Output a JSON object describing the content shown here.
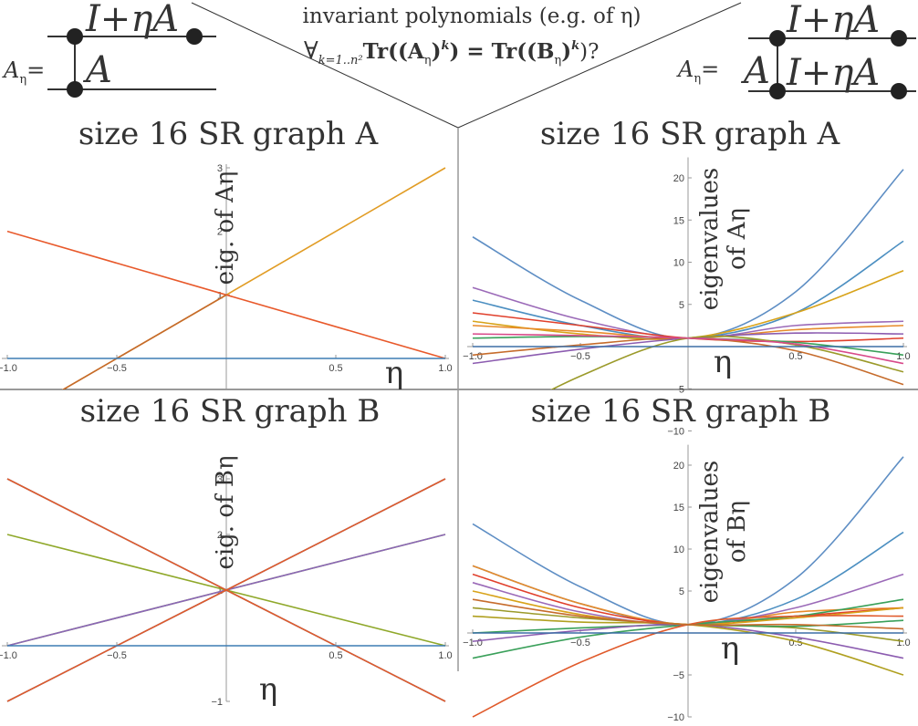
{
  "header": {
    "line1": "invariant polynomials (e.g. of η)",
    "line2": {
      "forall": "∀",
      "sub": "k=1..n²",
      "formula": "Tr((A",
      "eta1": "η",
      "pow1": "k",
      "eq": ") = Tr((B",
      "eta2": "η",
      "pow2": "k",
      "close": ")?"
    }
  },
  "diagram_left": {
    "lhs": "A",
    "lhs_sub": "η",
    "eq": "=",
    "top": "I+ηA",
    "bottom": "A"
  },
  "diagram_right": {
    "lhs": "A",
    "lhs_sub": "η",
    "eq": "=",
    "top": "I+ηA",
    "left": "A",
    "bottom": "I+ηA"
  },
  "chart_data": [
    {
      "type": "line",
      "title": "size 16 SR graph A",
      "ylabel": "eig. of Aη",
      "xlabel": "η",
      "xlim": [
        -1.0,
        1.0
      ],
      "ylim": [
        -1.0,
        3.0
      ],
      "xticks": [
        "−1.0",
        "−0.5",
        "0.5",
        "1.0"
      ],
      "xtick_values": [
        -1.0,
        -0.5,
        0.5,
        1.0
      ],
      "yticks": [
        "1",
        "2",
        "3"
      ],
      "ytick_values": [
        1,
        2,
        3
      ],
      "series": [
        {
          "color": "#e19c24",
          "x": [
            -1,
            1
          ],
          "y": [
            -1,
            3
          ]
        },
        {
          "color": "#e8592b",
          "x": [
            -1,
            1
          ],
          "y": [
            2,
            0
          ]
        },
        {
          "color": "#c56a2c",
          "x": [
            -1,
            0
          ],
          "y": [
            -1,
            1
          ]
        },
        {
          "color": "#3d7db4",
          "x": [
            -1,
            1
          ],
          "y": [
            0,
            0
          ]
        }
      ]
    },
    {
      "type": "line",
      "title": "size 16 SR graph A",
      "ylabel": "eigenvalues of Aη",
      "xlabel": "η",
      "xlim": [
        -1.0,
        1.0
      ],
      "ylim": [
        -10,
        22
      ],
      "xticks": [
        "−1.0",
        "−0.5",
        "0.5",
        "1.0"
      ],
      "xtick_values": [
        -1.0,
        -0.5,
        0.5,
        1.0
      ],
      "yticks": [
        "−10",
        "−5",
        "5",
        "10",
        "15",
        "20"
      ],
      "ytick_values": [
        -10,
        -5,
        5,
        10,
        15,
        20
      ],
      "series": [
        {
          "color": "#5e8ec4",
          "x": [
            -1,
            -0.5,
            0,
            0.5,
            1
          ],
          "y": [
            13,
            5.5,
            1,
            6.5,
            21
          ]
        },
        {
          "color": "#4c8fc1",
          "x": [
            -1,
            -0.5,
            0,
            0.5,
            1
          ],
          "y": [
            5.5,
            2.5,
            1,
            4,
            12.5
          ]
        },
        {
          "color": "#9b6ab8",
          "x": [
            -1,
            -0.5,
            0,
            0.5,
            1
          ],
          "y": [
            7,
            3.2,
            1,
            2.5,
            3
          ]
        },
        {
          "color": "#d8a31a",
          "x": [
            -1,
            -0.5,
            0,
            0.5,
            1
          ],
          "y": [
            3,
            1.5,
            1,
            4,
            9
          ]
        },
        {
          "color": "#e0402c",
          "x": [
            -1,
            -0.5,
            0,
            0.5,
            1
          ],
          "y": [
            4,
            2.5,
            1,
            0.6,
            1
          ]
        },
        {
          "color": "#e78a2a",
          "x": [
            -1,
            -0.5,
            0,
            0.5,
            1
          ],
          "y": [
            2.5,
            1.8,
            1,
            2,
            2.5
          ]
        },
        {
          "color": "#3aa05a",
          "x": [
            -1,
            -0.5,
            0,
            0.5,
            1
          ],
          "y": [
            1,
            1.2,
            1,
            0.5,
            -1
          ]
        },
        {
          "color": "#c66c2c",
          "x": [
            -1,
            -0.5,
            0,
            0.5,
            1
          ],
          "y": [
            -1,
            0.2,
            1,
            -0.5,
            -4.5
          ]
        },
        {
          "color": "#8c5cb0",
          "x": [
            -1,
            -0.5,
            0,
            0.5,
            1
          ],
          "y": [
            -2,
            -0.3,
            1,
            1.6,
            1.5
          ]
        },
        {
          "color": "#9b9a2a",
          "x": [
            -1,
            -0.5,
            0,
            0.5,
            1
          ],
          "y": [
            -10,
            -3.5,
            1,
            0.2,
            -3
          ]
        },
        {
          "color": "#d84a8a",
          "x": [
            -1,
            -0.5,
            0,
            0.5,
            1
          ],
          "y": [
            1.5,
            1.3,
            1,
            0.3,
            -2
          ]
        },
        {
          "color": "#3d6fa6",
          "x": [
            -1,
            1
          ],
          "y": [
            0,
            0
          ]
        }
      ]
    },
    {
      "type": "line",
      "title": "size 16 SR graph B",
      "ylabel": "eig. of Bη",
      "xlabel": "η",
      "xlim": [
        -1.0,
        1.0
      ],
      "ylim": [
        -1.0,
        3.0
      ],
      "xticks": [
        "−1.0",
        "−0.5",
        "0.5",
        "1.0"
      ],
      "xtick_values": [
        -1.0,
        -0.5,
        0.5,
        1.0
      ],
      "yticks": [
        "−1",
        "1",
        "2",
        "3"
      ],
      "ytick_values": [
        -1,
        1,
        2,
        3
      ],
      "series": [
        {
          "color": "#4a7fb8",
          "x": [
            -1,
            1
          ],
          "y": [
            3,
            -1
          ]
        },
        {
          "color": "#4a7fb8",
          "x": [
            -1,
            1
          ],
          "y": [
            -1,
            3
          ]
        },
        {
          "color": "#8fa82a",
          "x": [
            -1,
            1
          ],
          "y": [
            2,
            0
          ]
        },
        {
          "color": "#8fa82a",
          "x": [
            -1,
            1
          ],
          "y": [
            0,
            2
          ]
        },
        {
          "color": "#8a66b8",
          "x": [
            -1,
            1
          ],
          "y": [
            0,
            2
          ]
        },
        {
          "color": "#e05a2b",
          "x": [
            -1,
            1
          ],
          "y": [
            -1,
            3
          ]
        },
        {
          "color": "#e05a2b",
          "x": [
            -1,
            1
          ],
          "y": [
            3,
            -1
          ]
        },
        {
          "color": "#3d7db4",
          "x": [
            -1,
            1
          ],
          "y": [
            0,
            0
          ]
        }
      ]
    },
    {
      "type": "line",
      "title": "size 16 SR graph B",
      "ylabel": "eigenvalues of Bη",
      "xlabel": "η",
      "xlim": [
        -1.0,
        1.0
      ],
      "ylim": [
        -10,
        22
      ],
      "xticks": [
        "−1.0",
        "−0.5",
        "0.5",
        "1.0"
      ],
      "xtick_values": [
        -1.0,
        -0.5,
        0.5,
        1.0
      ],
      "yticks": [
        "−10",
        "−5",
        "5",
        "10",
        "15",
        "20"
      ],
      "ytick_values": [
        -10,
        -5,
        5,
        10,
        15,
        20
      ],
      "series": [
        {
          "color": "#5e8ec4",
          "x": [
            -1,
            -0.5,
            0,
            0.5,
            1
          ],
          "y": [
            13,
            5.5,
            1,
            6.5,
            21
          ]
        },
        {
          "color": "#4c8fc1",
          "x": [
            -1,
            -0.5,
            0,
            0.5,
            1
          ],
          "y": [
            8,
            3.5,
            1,
            4,
            12
          ]
        },
        {
          "color": "#e78a2a",
          "x": [
            -1,
            -0.5,
            0,
            0.5,
            1
          ],
          "y": [
            8,
            3.5,
            1,
            2.5,
            3
          ]
        },
        {
          "color": "#e0402c",
          "x": [
            -1,
            -0.5,
            0,
            0.5,
            1
          ],
          "y": [
            7,
            3,
            1,
            2,
            3
          ]
        },
        {
          "color": "#9b6ab8",
          "x": [
            -1,
            -0.5,
            0,
            0.5,
            1
          ],
          "y": [
            6,
            2.5,
            1,
            3,
            7
          ]
        },
        {
          "color": "#d8a31a",
          "x": [
            -1,
            -0.5,
            0,
            0.5,
            1
          ],
          "y": [
            5,
            2.2,
            1,
            1.8,
            3
          ]
        },
        {
          "color": "#9b9a2a",
          "x": [
            -1,
            -0.5,
            0,
            0.5,
            1
          ],
          "y": [
            3,
            1.8,
            1,
            0.6,
            -1
          ]
        },
        {
          "color": "#3aa05a",
          "x": [
            -1,
            -0.5,
            0,
            0.5,
            1
          ],
          "y": [
            -3,
            -0.5,
            1,
            2,
            4
          ]
        },
        {
          "color": "#3aa05a",
          "x": [
            -1,
            -0.5,
            0,
            0.5,
            1
          ],
          "y": [
            0,
            0.6,
            1,
            0.8,
            1.5
          ]
        },
        {
          "color": "#e05a2b",
          "x": [
            -1,
            -0.5,
            0,
            0.5,
            1
          ],
          "y": [
            -10,
            -3.5,
            1,
            2,
            2
          ]
        },
        {
          "color": "#8c5cb0",
          "x": [
            -1,
            -0.5,
            0,
            0.5,
            1
          ],
          "y": [
            -1,
            0.3,
            1,
            -0.5,
            -3
          ]
        },
        {
          "color": "#b0a020",
          "x": [
            -1,
            -0.5,
            0,
            0.5,
            1
          ],
          "y": [
            2,
            1.3,
            1,
            -1,
            -5
          ]
        },
        {
          "color": "#c66c2c",
          "x": [
            -1,
            -0.5,
            0,
            0.5,
            1
          ],
          "y": [
            4,
            2,
            1,
            1,
            0.5
          ]
        },
        {
          "color": "#3d6fa6",
          "x": [
            -1,
            1
          ],
          "y": [
            0,
            0
          ]
        }
      ]
    }
  ]
}
